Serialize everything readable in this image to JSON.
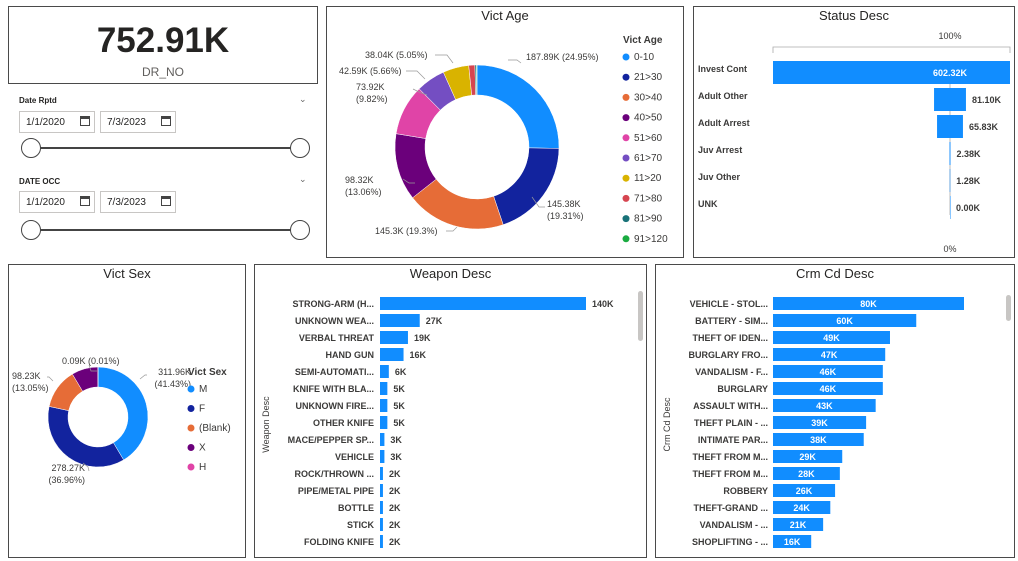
{
  "kpi": {
    "value": "752.91K",
    "label": "DR_NO"
  },
  "slicers": [
    {
      "title": "Date Rptd",
      "start": "1/1/2020",
      "end": "7/3/2023"
    },
    {
      "title": "DATE OCC",
      "start": "1/1/2020",
      "end": "7/3/2023"
    }
  ],
  "vict_age": {
    "title": "Vict Age",
    "legend_title": "Vict Age",
    "categories": [
      "0-10",
      "21>30",
      "30>40",
      "40>50",
      "51>60",
      "61>70",
      "11>20",
      "71>80",
      "81>90",
      "91>120"
    ],
    "colors": [
      "#118DFF",
      "#12239E",
      "#E66C37",
      "#6B007B",
      "#E044A7",
      "#744EC2",
      "#D9B300",
      "#D64550",
      "#197278",
      "#1AAB40"
    ],
    "values": [
      187890,
      145380,
      145300,
      98320,
      73920,
      42590,
      38040,
      9000,
      2000,
      1000
    ],
    "labels": [
      "187.89K (24.95%)",
      "145.38K (19.31%)",
      "145.3K (19.3%)",
      "98.32K (13.06%)",
      "73.92K (9.82%)",
      "42.59K (5.66%)",
      "38.04K (5.05%)"
    ]
  },
  "status": {
    "title": "Status Desc",
    "top_axis": "100%",
    "bottom_axis": "0%",
    "categories": [
      "Invest Cont",
      "Adult Other",
      "Adult Arrest",
      "Juv Arrest",
      "Juv Other",
      "UNK"
    ],
    "values": [
      602320,
      81100,
      65830,
      2380,
      1280,
      0
    ],
    "labels": [
      "602.32K",
      "81.10K",
      "65.83K",
      "2.38K",
      "1.28K",
      "0.00K"
    ],
    "color": "#118DFF"
  },
  "vict_sex": {
    "title": "Vict Sex",
    "legend_title": "Vict Sex",
    "categories": [
      "M",
      "F",
      "(Blank)",
      "X",
      "H"
    ],
    "colors": [
      "#118DFF",
      "#12239E",
      "#E66C37",
      "#6B007B",
      "#E044A7"
    ],
    "values": [
      311960,
      278270,
      98230,
      64400,
      90
    ],
    "labels": [
      "311.96K (41.43%)",
      "278.27K (36.96%)",
      "98.23K (13.05%)",
      "0.09K (0.01%)"
    ]
  },
  "weapon": {
    "title": "Weapon Desc",
    "ylabel": "Weapon Desc",
    "categories": [
      "STRONG-ARM (H...",
      "UNKNOWN WEA...",
      "VERBAL THREAT",
      "HAND GUN",
      "SEMI-AUTOMATI...",
      "KNIFE WITH BLA...",
      "UNKNOWN FIRE...",
      "OTHER KNIFE",
      "MACE/PEPPER SP...",
      "VEHICLE",
      "ROCK/THROWN ...",
      "PIPE/METAL PIPE",
      "BOTTLE",
      "STICK",
      "FOLDING KNIFE"
    ],
    "values": [
      140,
      27,
      19,
      16,
      6,
      5,
      5,
      5,
      3,
      3,
      2,
      2,
      2,
      2,
      2
    ],
    "labels": [
      "140K",
      "27K",
      "19K",
      "16K",
      "6K",
      "5K",
      "5K",
      "5K",
      "3K",
      "3K",
      "2K",
      "2K",
      "2K",
      "2K",
      "2K"
    ],
    "color": "#118DFF"
  },
  "crm": {
    "title": "Crm Cd Desc",
    "ylabel": "Crm Cd Desc",
    "categories": [
      "VEHICLE - STOL...",
      "BATTERY - SIM...",
      "THEFT OF IDEN...",
      "BURGLARY FRO...",
      "VANDALISM - F...",
      "BURGLARY",
      "ASSAULT WITH...",
      "THEFT PLAIN - ...",
      "INTIMATE PAR...",
      "THEFT FROM M...",
      "THEFT FROM M...",
      "ROBBERY",
      "THEFT-GRAND ...",
      "VANDALISM - ...",
      "SHOPLIFTING - ..."
    ],
    "values": [
      80,
      60,
      49,
      47,
      46,
      46,
      43,
      39,
      38,
      29,
      28,
      26,
      24,
      21,
      16
    ],
    "labels": [
      "80K",
      "60K",
      "49K",
      "47K",
      "46K",
      "46K",
      "43K",
      "39K",
      "38K",
      "29K",
      "28K",
      "26K",
      "24K",
      "21K",
      "16K"
    ],
    "color": "#118DFF"
  }
}
